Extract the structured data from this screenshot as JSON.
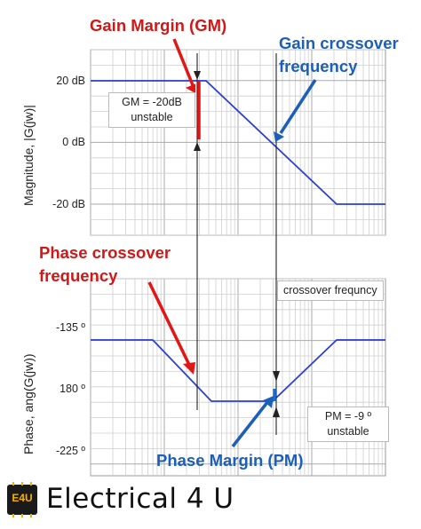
{
  "magnitude_panel": {
    "ylabel": "Magnitude, |G(jw)|",
    "ticks": [
      "20 dB",
      "0 dB",
      "-20 dB"
    ],
    "gm_box": {
      "line1": "GM = -20dB",
      "line2": "unstable"
    }
  },
  "phase_panel": {
    "ylabel": "Phase, ang(G(jw))",
    "ticks": [
      "-135 º",
      "180 º",
      "-225 º"
    ],
    "crossover_box": "crossover frequncy",
    "pm_box": {
      "line1": "PM = -9 º",
      "line2": "unstable"
    }
  },
  "annotations": {
    "gain_margin": "Gain Margin (GM)",
    "gain_crossover_line1": "Gain crossover",
    "gain_crossover_line2": "frequency",
    "phase_crossover_line1": "Phase crossover",
    "phase_crossover_line2": "frequency",
    "phase_margin": "Phase Margin (PM)"
  },
  "brand": {
    "logo_text": "E4U",
    "name": "Electrical 4 U"
  },
  "colors": {
    "curve": "#2b3fd1",
    "red_annotation": "#d01818",
    "blue_annotation": "#1c5fb8",
    "grid": "#cfcfcf"
  }
}
